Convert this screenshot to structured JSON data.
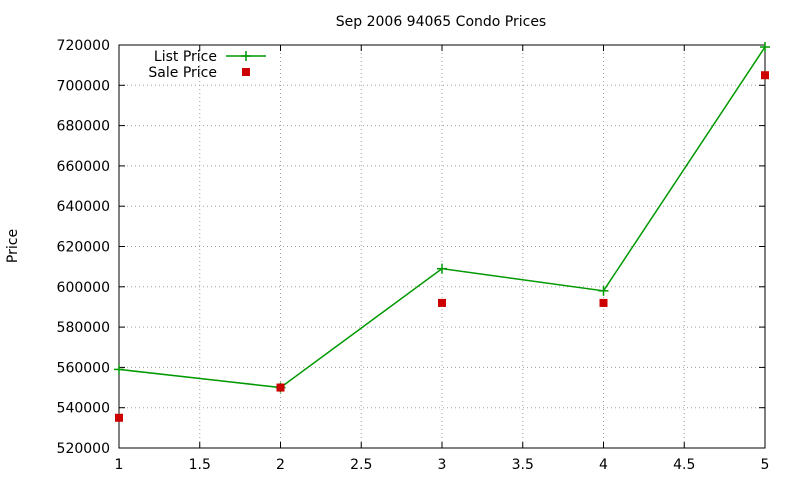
{
  "chart_data": {
    "type": "line",
    "title": "Sep 2006 94065 Condo Prices",
    "xlabel": "",
    "ylabel": "Price",
    "xlim": [
      1,
      5
    ],
    "ylim": [
      520000,
      720000
    ],
    "x_ticks": [
      1,
      1.5,
      2,
      2.5,
      3,
      3.5,
      4,
      4.5,
      5
    ],
    "x_tick_labels": [
      "1",
      "1.5",
      "2",
      "2.5",
      "3",
      "3.5",
      "4",
      "4.5",
      "5"
    ],
    "y_ticks": [
      520000,
      540000,
      560000,
      580000,
      600000,
      620000,
      640000,
      660000,
      680000,
      700000,
      720000
    ],
    "y_tick_labels": [
      "520000",
      "540000",
      "560000",
      "580000",
      "600000",
      "620000",
      "640000",
      "660000",
      "680000",
      "700000",
      "720000"
    ],
    "grid": true,
    "legend_position": "top-left",
    "series": [
      {
        "name": "List Price",
        "style": "linespoints",
        "color": "#009900",
        "marker": "plus",
        "x": [
          1,
          2,
          3,
          4,
          5
        ],
        "values": [
          559000,
          550000,
          609000,
          598000,
          719000
        ]
      },
      {
        "name": "Sale Price",
        "style": "points",
        "color": "#cc0000",
        "marker": "square",
        "x": [
          1,
          2,
          3,
          4,
          5
        ],
        "values": [
          535000,
          550000,
          592000,
          592000,
          705000
        ]
      }
    ]
  }
}
